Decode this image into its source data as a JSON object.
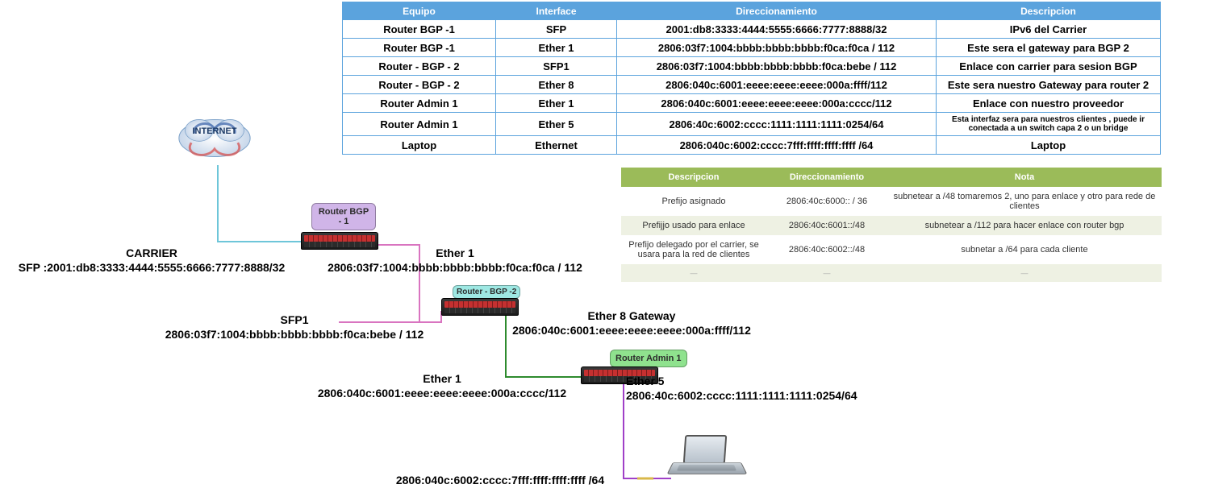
{
  "table1": {
    "headers": [
      "Equipo",
      "Interface",
      "Direccionamiento",
      "Descripcion"
    ],
    "rows": [
      [
        "Router BGP -1",
        "SFP",
        "2001:db8:3333:4444:5555:6666:7777:8888/32",
        "IPv6 del Carrier"
      ],
      [
        "Router BGP -1",
        "Ether 1",
        "2806:03f7:1004:bbbb:bbbb:bbbb:f0ca:f0ca / 112",
        "Este sera el gateway para BGP 2"
      ],
      [
        "Router - BGP - 2",
        "SFP1",
        "2806:03f7:1004:bbbb:bbbb:bbbb:f0ca:bebe / 112",
        "Enlace con carrier para sesion BGP"
      ],
      [
        "Router - BGP - 2",
        "Ether 8",
        "2806:040c:6001:eeee:eeee:eeee:000a:ffff/112",
        "Este sera nuestro Gateway para router 2"
      ],
      [
        "Router Admin 1",
        "Ether 1",
        "2806:040c:6001:eeee:eeee:eeee:000a:cccc/112",
        "Enlace con nuestro proveedor"
      ],
      [
        "Router Admin 1",
        "Ether 5",
        "2806:40c:6002:cccc:1111:1111:1111:0254/64",
        "Esta interfaz sera para nuestros clientes , puede ir conectada a un switch capa 2 o un bridge"
      ],
      [
        "Laptop",
        "Ethernet",
        "2806:040c:6002:cccc:7fff:ffff:ffff:ffff /64",
        "Laptop"
      ]
    ],
    "small_row_index": 5,
    "header_bg": "#5ba3dd",
    "header_fg": "#ffffff",
    "border": "#5ba3dd"
  },
  "table2": {
    "headers": [
      "Descripcion",
      "Direccionamiento",
      "Nota"
    ],
    "rows": [
      [
        "Prefijo asignado",
        "2806:40c:6000:: / 36",
        "subnetear a /48  tomaremos 2, uno para enlace y otro para rede de clientes"
      ],
      [
        "Prefijjo usado para enlace",
        "2806:40c:6001::/48",
        "subnetear a /112 para hacer enlace con router bgp"
      ],
      [
        "Prefijo delegado por el carrier, se usara para la red de clientes",
        "2806:40c:6002::/48",
        "subnetar a /64 para cada cliente"
      ],
      [
        "—",
        "—",
        "—"
      ]
    ],
    "header_bg": "#9bbb59",
    "alt_bg": "#eef1e3"
  },
  "internet": {
    "label": "INTERNET"
  },
  "routers": {
    "bgp1": {
      "label": "Router BGP - 1",
      "bg": "#d0b5e8"
    },
    "bgp2": {
      "label": "Router - BGP -2",
      "bg": "#9ee8e3"
    },
    "admin1": {
      "label": "Router Admin 1",
      "bg": "#8fe28e"
    }
  },
  "diagram_labels": {
    "carrier1": "CARRIER",
    "carrier2": "SFP :2001:db8:3333:4444:5555:6666:7777:8888/32",
    "ether1_bgp1_a": "Ether 1",
    "ether1_bgp1_b": "2806:03f7:1004:bbbb:bbbb:bbbb:f0ca:f0ca / 112",
    "sfp1_a": "SFP1",
    "sfp1_b": "2806:03f7:1004:bbbb:bbbb:bbbb:f0ca:bebe / 112",
    "ether8_a": "Ether 8 Gateway",
    "ether8_b": "2806:040c:6001:eeee:eeee:eeee:000a:ffff/112",
    "ether1_admin_a": "Ether 1",
    "ether1_admin_b": "2806:040c:6001:eeee:eeee:eeee:000a:cccc/112",
    "ether5_a": "Ether 5",
    "ether5_b": "2806:40c:6002:cccc:1111:1111:1111:0254/64",
    "laptop_ip": "2806:040c:6002:cccc:7fff:ffff:ffff:ffff /64"
  },
  "wire_colors": {
    "internet_to_bgp1": "#6ec6d9",
    "bgp1_to_bgp2": "#d974c0",
    "bgp2_to_admin1": "#2e8b2e",
    "admin1_to_laptop": "#a040c8",
    "laptop_stub": "#d9b84a"
  }
}
